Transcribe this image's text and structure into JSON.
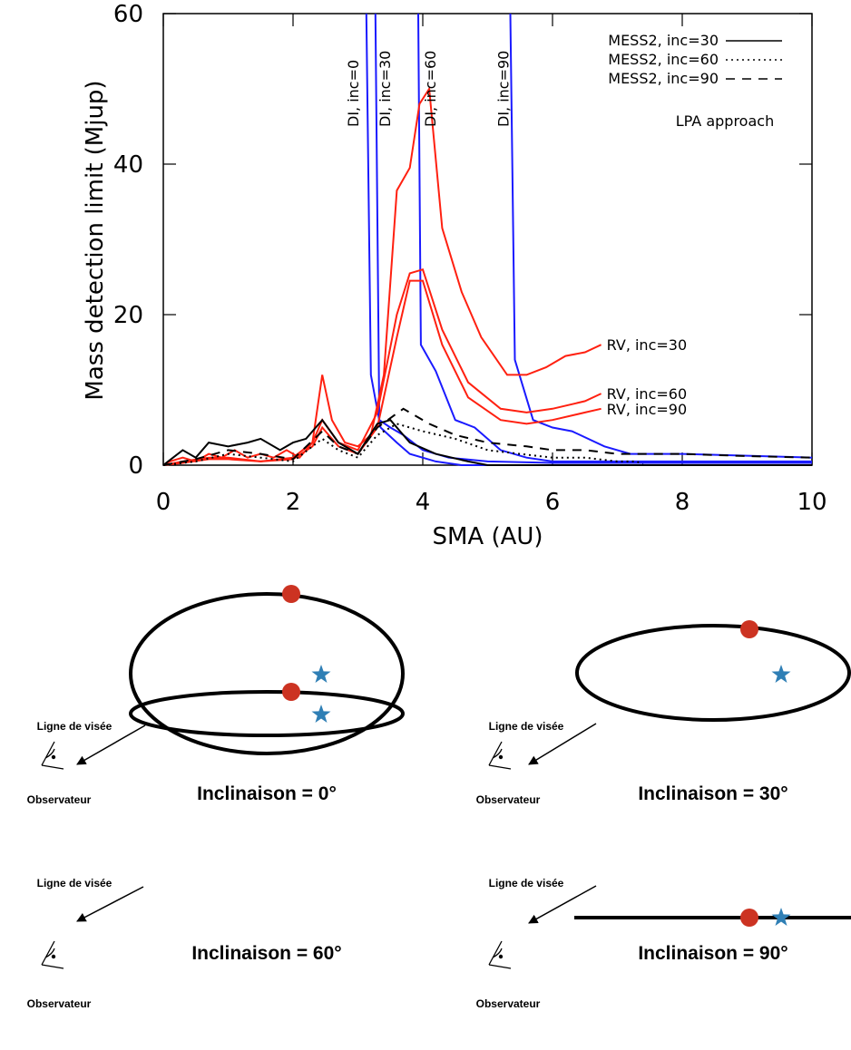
{
  "chart_data": {
    "type": "line",
    "x_label": "SMA (AU)",
    "y_label": "Mass detection limit (Mjup)",
    "annotation": "LPA approach",
    "xlim": [
      0,
      10
    ],
    "ylim": [
      0,
      60
    ],
    "xticks": [
      0,
      2,
      4,
      6,
      8,
      10
    ],
    "yticks": [
      0,
      20,
      40,
      60
    ],
    "series": [
      {
        "name": "DI, inc=0",
        "color": "#1a1aff",
        "style": "solid",
        "label_position": "top",
        "x": [
          3.13,
          3.2,
          3.35,
          3.6,
          3.8,
          4.2,
          4.6,
          5,
          10
        ],
        "values": [
          60,
          12,
          5,
          3,
          1.5,
          0.5,
          0,
          0,
          0
        ]
      },
      {
        "name": "DI, inc=30",
        "color": "#1a1aff",
        "style": "solid",
        "label_position": "top",
        "x": [
          3.27,
          3.33,
          3.5,
          3.7,
          4,
          4.4,
          5,
          6,
          10
        ],
        "values": [
          60,
          6,
          5,
          4,
          2,
          1,
          0.5,
          0.3,
          0.3
        ]
      },
      {
        "name": "DI, inc=60",
        "color": "#1a1aff",
        "style": "solid",
        "label_position": "top",
        "x": [
          3.93,
          3.97,
          4.2,
          4.5,
          4.8,
          5.2,
          5.6,
          6,
          7,
          10
        ],
        "values": [
          60,
          16,
          12.5,
          6,
          5,
          2,
          1,
          0.5,
          0.5,
          0.5
        ]
      },
      {
        "name": "DI, inc=90",
        "color": "#1a1aff",
        "style": "solid",
        "label_position": "top",
        "x": [
          5.35,
          5.42,
          5.7,
          6,
          6.3,
          6.8,
          7.2,
          8,
          10
        ],
        "values": [
          60,
          14,
          6,
          5,
          4.5,
          2.5,
          1.5,
          1.5,
          1
        ]
      },
      {
        "name": "RV, inc=30",
        "color": "#ff2010",
        "style": "solid",
        "label_position": "end",
        "x": [
          0,
          0.1,
          0.3,
          0.5,
          0.7,
          0.9,
          1.1,
          1.3,
          1.5,
          1.7,
          1.9,
          2.1,
          2.3,
          2.45,
          2.6,
          2.8,
          3,
          3.2,
          3.4,
          3.6,
          3.8,
          3.95,
          4.1,
          4.3,
          4.6,
          4.9,
          5.3,
          5.6,
          5.9,
          6.2,
          6.5,
          6.75
        ],
        "values": [
          0,
          0.5,
          1,
          0.5,
          1.5,
          1,
          2,
          1,
          1.5,
          1,
          2,
          1,
          3,
          12,
          6,
          3,
          2.5,
          4,
          12,
          36.5,
          39.5,
          48,
          50,
          31.5,
          23,
          17,
          12,
          12,
          13,
          14.5,
          15,
          16
        ]
      },
      {
        "name": "RV, inc=60",
        "color": "#ff2010",
        "style": "solid",
        "label_position": "end",
        "x": [
          0,
          0.3,
          0.7,
          1,
          1.5,
          2,
          2.3,
          2.45,
          2.7,
          3,
          3.3,
          3.6,
          3.8,
          4,
          4.3,
          4.7,
          5.2,
          5.6,
          6,
          6.5,
          6.75
        ],
        "values": [
          0,
          0.5,
          1,
          1,
          0.5,
          1,
          3,
          6,
          3,
          2,
          7,
          20,
          25.5,
          26,
          18,
          11,
          7.5,
          7,
          7.5,
          8.5,
          9.5
        ]
      },
      {
        "name": "RV, inc=90",
        "color": "#ff2010",
        "style": "solid",
        "label_position": "end",
        "x": [
          0,
          0.3,
          0.7,
          1,
          1.5,
          2,
          2.3,
          2.45,
          2.7,
          3,
          3.3,
          3.6,
          3.8,
          4,
          4.3,
          4.7,
          5.2,
          5.6,
          6,
          6.5,
          6.75
        ],
        "values": [
          0,
          0.3,
          0.8,
          0.8,
          0.5,
          0.8,
          2.5,
          5,
          2.5,
          1.5,
          5,
          17,
          24.5,
          24.5,
          16,
          9,
          6,
          5.5,
          6,
          7,
          7.5
        ]
      },
      {
        "name": "MESS2, inc=30",
        "color": "#000000",
        "style": "solid",
        "label_position": "legend",
        "x": [
          0,
          0.3,
          0.5,
          0.7,
          1,
          1.3,
          1.5,
          1.8,
          2,
          2.2,
          2.45,
          2.7,
          3,
          3.3,
          3.5,
          3.8,
          4.2,
          4.7,
          5,
          10
        ],
        "values": [
          0,
          2,
          1,
          3,
          2.5,
          3,
          3.5,
          2,
          3,
          3.5,
          6,
          3,
          1.5,
          5.5,
          6,
          3,
          1.5,
          0.5,
          0,
          0
        ]
      },
      {
        "name": "MESS2, inc=60",
        "color": "#000000",
        "style": "dotted",
        "label_position": "legend",
        "x": [
          0,
          0.5,
          1,
          1.5,
          2,
          2.45,
          2.7,
          3,
          3.3,
          3.6,
          4,
          4.5,
          5,
          5.5,
          6,
          6.5,
          7,
          7.3,
          7.4,
          10
        ],
        "values": [
          0,
          0.5,
          1.5,
          1,
          0.5,
          3.5,
          2,
          1,
          4,
          5.5,
          4.5,
          3.5,
          2,
          1.5,
          1,
          1,
          0.5,
          0.5,
          0,
          0
        ]
      },
      {
        "name": "MESS2, inc=90",
        "color": "#000000",
        "style": "dashed",
        "label_position": "legend",
        "x": [
          0,
          0.5,
          1,
          1.5,
          2,
          2.45,
          2.7,
          3,
          3.3,
          3.7,
          4.1,
          4.5,
          5,
          5.6,
          6,
          6.5,
          7,
          8,
          9,
          10
        ],
        "values": [
          0,
          0.8,
          2,
          1.5,
          0.8,
          4.5,
          2.5,
          1.5,
          5,
          7.5,
          5.5,
          4,
          3,
          2.5,
          2,
          2,
          1.5,
          1.5,
          1.2,
          1
        ]
      }
    ]
  },
  "diagrams": [
    {
      "sight_label": "Ligne de visée",
      "observer_label": "Observateur",
      "title": "Inclinaison = 0°"
    },
    {
      "sight_label": "Ligne de visée",
      "observer_label": "Observateur",
      "title": "Inclinaison = 30°"
    },
    {
      "sight_label": "Ligne de visée",
      "observer_label": "Observateur",
      "title": "Inclinaison = 60°"
    },
    {
      "sight_label": "Ligne de visée",
      "observer_label": "Observateur",
      "title": "Inclinaison = 90°"
    }
  ]
}
